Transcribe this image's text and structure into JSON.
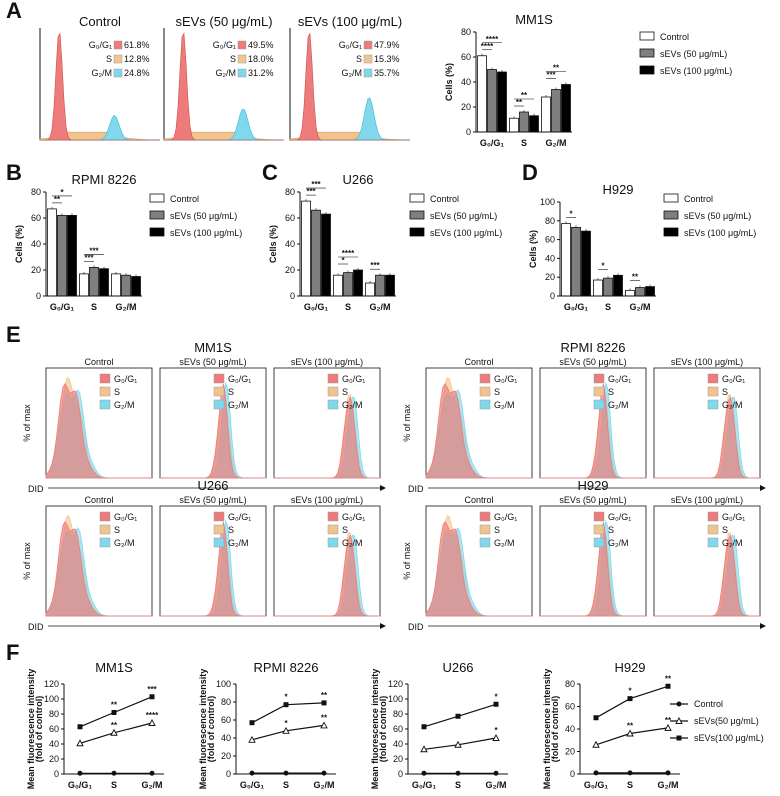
{
  "panels": {
    "A": "A",
    "B": "B",
    "C": "C",
    "D": "D",
    "E": "E",
    "F": "F"
  },
  "colors": {
    "g0g1": "#ee7b7b",
    "s": "#f2c48d",
    "g2m": "#7fd8ec",
    "black": "#000000",
    "gray": "#7f7f7f",
    "white": "#ffffff"
  },
  "panelA": {
    "title": "MM1S",
    "histograms": [
      {
        "title": "Control",
        "g0g1": "61.8%",
        "s": "12.8%",
        "g2m": "24.8%"
      },
      {
        "title": "sEVs (50 μg/mL)",
        "g0g1": "49.5%",
        "s": "18.0%",
        "g2m": "31.2%"
      },
      {
        "title": "sEVs (100 μg/mL)",
        "g0g1": "47.9%",
        "s": "15.3%",
        "g2m": "35.7%"
      }
    ],
    "phase_labels": {
      "g0g1": "G₀/G₁",
      "s": "S",
      "g2m": "G₂/M"
    }
  },
  "legend_bars": {
    "control": "Control",
    "sev50": "sEVs (50 μg/mL)",
    "sev100": "sEVs (100 μg/mL)"
  },
  "chart_data": [
    {
      "type": "bar",
      "panel": "A",
      "title": "MM1S",
      "ylabel": "Cells (%)",
      "ylim": [
        0,
        80
      ],
      "yticks": [
        0,
        20,
        40,
        60,
        80
      ],
      "categories": [
        "G0/G1",
        "S",
        "G2/M"
      ],
      "series": [
        {
          "name": "Control",
          "values": [
            61,
            11,
            28
          ]
        },
        {
          "name": "sEVs (50 μg/mL)",
          "values": [
            50,
            16,
            34
          ]
        },
        {
          "name": "sEVs (100 μg/mL)",
          "values": [
            48,
            13,
            38
          ]
        }
      ],
      "significance": [
        "****",
        "****",
        "**",
        "**",
        "***",
        "**"
      ]
    },
    {
      "type": "bar",
      "panel": "B",
      "title": "RPMI 8226",
      "ylabel": "Cells (%)",
      "ylim": [
        0,
        80
      ],
      "yticks": [
        0,
        20,
        40,
        60,
        80
      ],
      "categories": [
        "G0/G1",
        "S",
        "G2/M"
      ],
      "series": [
        {
          "name": "Control",
          "values": [
            67,
            17,
            17
          ]
        },
        {
          "name": "sEVs (50 μg/mL)",
          "values": [
            62,
            22,
            16
          ]
        },
        {
          "name": "sEVs (100 μg/mL)",
          "values": [
            62,
            21,
            15
          ]
        }
      ],
      "significance": [
        "**",
        "*",
        "***",
        "***"
      ]
    },
    {
      "type": "bar",
      "panel": "C",
      "title": "U266",
      "ylabel": "Cells (%)",
      "ylim": [
        0,
        80
      ],
      "yticks": [
        0,
        20,
        40,
        60,
        80
      ],
      "categories": [
        "G0/G1",
        "S",
        "G2/M"
      ],
      "series": [
        {
          "name": "Control",
          "values": [
            73,
            16,
            10
          ]
        },
        {
          "name": "sEVs (50 μg/mL)",
          "values": [
            66,
            18,
            16
          ]
        },
        {
          "name": "sEVs (100 μg/mL)",
          "values": [
            63,
            20,
            16
          ]
        }
      ],
      "significance": [
        "***",
        "***",
        "*",
        "****",
        "***"
      ]
    },
    {
      "type": "bar",
      "panel": "D",
      "title": "H929",
      "ylabel": "Cells (%)",
      "ylim": [
        0,
        100
      ],
      "yticks": [
        0,
        20,
        40,
        60,
        80,
        100
      ],
      "categories": [
        "G0/G1",
        "S",
        "G2/M"
      ],
      "series": [
        {
          "name": "Control",
          "values": [
            77,
            17,
            6
          ]
        },
        {
          "name": "sEVs (50 μg/mL)",
          "values": [
            73,
            19,
            9
          ]
        },
        {
          "name": "sEVs (100 μg/mL)",
          "values": [
            69,
            22,
            10
          ]
        }
      ],
      "significance": [
        "*",
        "*",
        "**"
      ]
    },
    {
      "type": "line",
      "panel": "F",
      "title": "MM1S",
      "ylabel": "Mean fluorescence intensity (fold of control)",
      "ylim": [
        0,
        120
      ],
      "yticks": [
        0,
        20,
        40,
        60,
        80,
        100,
        120
      ],
      "categories": [
        "G0/G1",
        "S",
        "G2/M"
      ],
      "series": [
        {
          "name": "Control",
          "values": [
            1,
            1,
            1
          ]
        },
        {
          "name": "sEVs(50 μg/mL)",
          "values": [
            41,
            55,
            68
          ]
        },
        {
          "name": "sEVs(100 μg/mL)",
          "values": [
            63,
            82,
            103
          ]
        }
      ],
      "sig50": [
        "",
        "**",
        "****"
      ],
      "sig100": [
        "",
        "**",
        "***"
      ]
    },
    {
      "type": "line",
      "panel": "F",
      "title": "RPMI 8226",
      "ylabel": "Mean fluorescence intensity (fold of control)",
      "ylim": [
        0,
        100
      ],
      "yticks": [
        0,
        20,
        40,
        60,
        80,
        100
      ],
      "categories": [
        "G0/G1",
        "S",
        "G2/M"
      ],
      "series": [
        {
          "name": "Control",
          "values": [
            1,
            1,
            1
          ]
        },
        {
          "name": "sEVs(50 μg/mL)",
          "values": [
            38,
            48,
            54
          ]
        },
        {
          "name": "sEVs(100 μg/mL)",
          "values": [
            57,
            77,
            79
          ]
        }
      ],
      "sig50": [
        "",
        "*",
        "**"
      ],
      "sig100": [
        "",
        "*",
        "**"
      ]
    },
    {
      "type": "line",
      "panel": "F",
      "title": "U266",
      "ylabel": "Mean fluorescence intensity (fold of control)",
      "ylim": [
        0,
        120
      ],
      "yticks": [
        0,
        20,
        40,
        60,
        80,
        100,
        120
      ],
      "categories": [
        "G0/G1",
        "S",
        "G2/M"
      ],
      "series": [
        {
          "name": "Control",
          "values": [
            1,
            1,
            1
          ]
        },
        {
          "name": "sEVs(50 μg/mL)",
          "values": [
            33,
            39,
            48
          ]
        },
        {
          "name": "sEVs(100 μg/mL)",
          "values": [
            63,
            77,
            93
          ]
        }
      ],
      "sig50": [
        "",
        "",
        "*"
      ],
      "sig100": [
        "",
        "",
        "*"
      ]
    },
    {
      "type": "line",
      "panel": "F",
      "title": "H929",
      "ylabel": "Mean fluorescence intensity (fold of control)",
      "ylim": [
        0,
        80
      ],
      "yticks": [
        0,
        20,
        40,
        60,
        80
      ],
      "categories": [
        "G0/G1",
        "S",
        "G2/M"
      ],
      "series": [
        {
          "name": "Control",
          "values": [
            1,
            1,
            1
          ]
        },
        {
          "name": "sEVs(50 μg/mL)",
          "values": [
            26,
            36,
            41
          ]
        },
        {
          "name": "sEVs(100 μg/mL)",
          "values": [
            50,
            67,
            78
          ]
        }
      ],
      "sig50": [
        "",
        "**",
        "**"
      ],
      "sig100": [
        "",
        "*",
        "**"
      ]
    }
  ],
  "panelE": {
    "groups": [
      {
        "title": "MM1S",
        "row": 0,
        "side": "left"
      },
      {
        "title": "RPMI 8226",
        "row": 0,
        "side": "right"
      },
      {
        "title": "U266",
        "row": 1,
        "side": "left"
      },
      {
        "title": "H929",
        "row": 1,
        "side": "right"
      }
    ],
    "col_titles": [
      "Control",
      "sEVs (50 μg/mL)",
      "sEVs (100 μg/mL)"
    ],
    "ylabel": "% of max",
    "xlabel": "DID",
    "phase_labels": [
      "G₀/G₁",
      "S",
      "G₂/M"
    ]
  },
  "panelF_legend": [
    "Control",
    "sEVs(50 μg/mL)",
    "sEVs(100 μg/mL)"
  ],
  "x_cat_labels": [
    "G₀/G₁",
    "S",
    "G₂/M"
  ]
}
